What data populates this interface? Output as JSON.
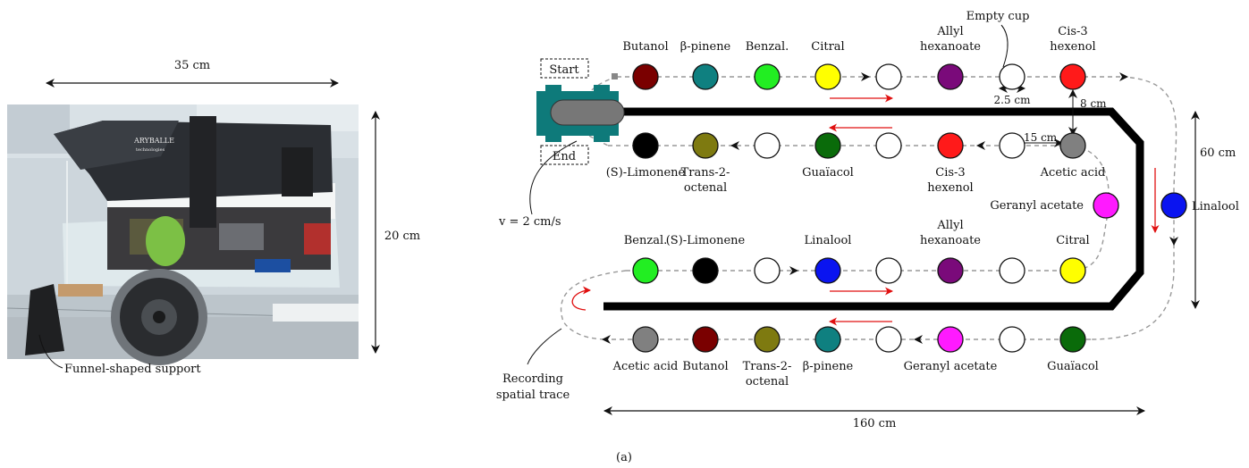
{
  "photo": {
    "width_label": "35 cm",
    "height_label": "20 cm",
    "support_label": "Funnel-shaped support",
    "device_brand": "ARYBALLE",
    "device_sub": "technologies"
  },
  "track": {
    "start_label": "Start",
    "end_label": "End",
    "speed_label": "v = 2 cm/s",
    "empty_cup_label": "Empty cup",
    "spacing_label": "2.5 cm",
    "gap_label": "8 cm",
    "cup_gap_label": "15 cm",
    "height_label": "60 cm",
    "length_label": "160 cm",
    "recording_label_line1": "Recording",
    "recording_label_line2": "spatial trace",
    "caption": "(a)"
  },
  "colors": {
    "Butanol": "#7a0000",
    "β-pinene": "#0f8080",
    "Benzal.": "#22ee22",
    "Citral": "#ffff00",
    "Empty": "#ffffff",
    "Allyl hexanoate": "#7a0a7a",
    "Cis-3 hexenol": "#ff1a1a",
    "Linalool": "#0a14f0",
    "Acetic acid": "#808080",
    "Geranyl acetate": "#ff1aff",
    "Guaïacol": "#0a6b0a",
    "Trans-2-octenal": "#7e7a10",
    "(S)-Limonene": "#000000"
  },
  "rows": {
    "row1": {
      "cups": [
        "Butanol",
        "β-pinene",
        "Benzal.",
        "Citral",
        "Empty",
        "Allyl hexanoate",
        "Empty",
        "Cis-3 hexenol"
      ],
      "labels": [
        [
          "Butanol"
        ],
        [
          "β-pinene"
        ],
        [
          "Benzal."
        ],
        [
          "Citral"
        ],
        [],
        [
          "Allyl",
          "hexanoate"
        ],
        [],
        [
          "Cis-3",
          "hexenol"
        ]
      ]
    },
    "row2": {
      "cups": [
        "(S)-Limonene",
        "Trans-2-octenal",
        "Empty",
        "Guaïacol",
        "Empty",
        "Cis-3 hexenol",
        "Empty",
        "Acetic acid"
      ],
      "labels": [
        [
          "(S)-Limonene"
        ],
        [
          "Trans-2-",
          "octenal"
        ],
        [],
        [
          "Guaïacol"
        ],
        [],
        [
          "Cis-3",
          "hexenol"
        ],
        [],
        [
          "Acetic acid"
        ]
      ]
    },
    "row3": {
      "cups": [
        "Benzal.",
        "(S)-Limonene",
        "Empty",
        "Linalool",
        "Empty",
        "Allyl hexanoate",
        "Empty",
        "Citral"
      ],
      "labels": [
        [
          "Benzal."
        ],
        [
          "(S)-Limonene"
        ],
        [],
        [
          "Linalool"
        ],
        [],
        [
          "Allyl",
          "hexanoate"
        ],
        [],
        [
          "Citral"
        ]
      ]
    },
    "row4": {
      "cups": [
        "Acetic acid",
        "Butanol",
        "Trans-2-octenal",
        "β-pinene",
        "Empty",
        "Geranyl acetate",
        "Empty",
        "Guaïacol"
      ],
      "labels": [
        [
          "Acetic acid"
        ],
        [
          "Butanol"
        ],
        [
          "Trans-2-",
          "octenal"
        ],
        [
          "β-pinene"
        ],
        [],
        [
          "Geranyl acetate"
        ],
        [],
        [
          "Guaïacol"
        ]
      ]
    },
    "side_right": {
      "cup": "Linalool",
      "label": "Linalool"
    },
    "side_inner": {
      "cup": "Geranyl acetate",
      "label": "Geranyl acetate"
    }
  }
}
